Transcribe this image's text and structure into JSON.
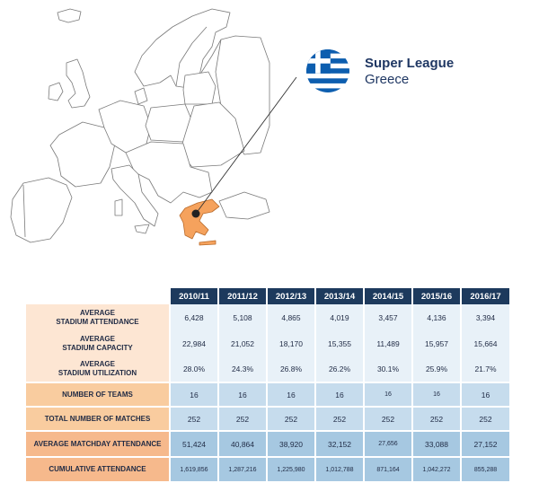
{
  "league": {
    "name": "Super League",
    "country": "Greece",
    "accent_color": "#1f3763",
    "highlight_color": "#f5a25d",
    "flag_colors": [
      "#0d5eaf",
      "#ffffff"
    ]
  },
  "table": {
    "columns": [
      "2010/11",
      "2011/12",
      "2012/13",
      "2013/14",
      "2014/15",
      "2015/16",
      "2016/17"
    ],
    "rows": [
      {
        "label_line1": "AVERAGE",
        "label_line2": "STADIUM ATTENDANCE",
        "values": [
          "6,428",
          "5,108",
          "4,865",
          "4,019",
          "3,457",
          "4,136",
          "3,394"
        ]
      },
      {
        "label_line1": "AVERAGE",
        "label_line2": "STADIUM CAPACITY",
        "values": [
          "22,984",
          "21,052",
          "18,170",
          "15,355",
          "11,489",
          "15,957",
          "15,664"
        ]
      },
      {
        "label_line1": "AVERAGE",
        "label_line2": "STADIUM UTILIZATION",
        "values": [
          "28.0%",
          "24.3%",
          "26.8%",
          "26.2%",
          "30.1%",
          "25.9%",
          "21.7%"
        ]
      },
      {
        "label_line1": "NUMBER OF TEAMS",
        "label_line2": "",
        "values": [
          "16",
          "16",
          "16",
          "16",
          "16",
          "16",
          "16"
        ]
      },
      {
        "label_line1": "TOTAL NUMBER OF MATCHES",
        "label_line2": "",
        "values": [
          "252",
          "252",
          "252",
          "252",
          "252",
          "252",
          "252"
        ]
      },
      {
        "label_line1": "AVERAGE MATCHDAY ATTENDANCE",
        "label_line2": "",
        "values": [
          "51,424",
          "40,864",
          "38,920",
          "32,152",
          "27,656",
          "33,088",
          "27,152"
        ]
      },
      {
        "label_line1": "CUMULATIVE ATTENDANCE",
        "label_line2": "",
        "values": [
          "1,619,856",
          "1,287,216",
          "1,225,980",
          "1,012,788",
          "871,164",
          "1,042,272",
          "855,288"
        ]
      }
    ]
  }
}
